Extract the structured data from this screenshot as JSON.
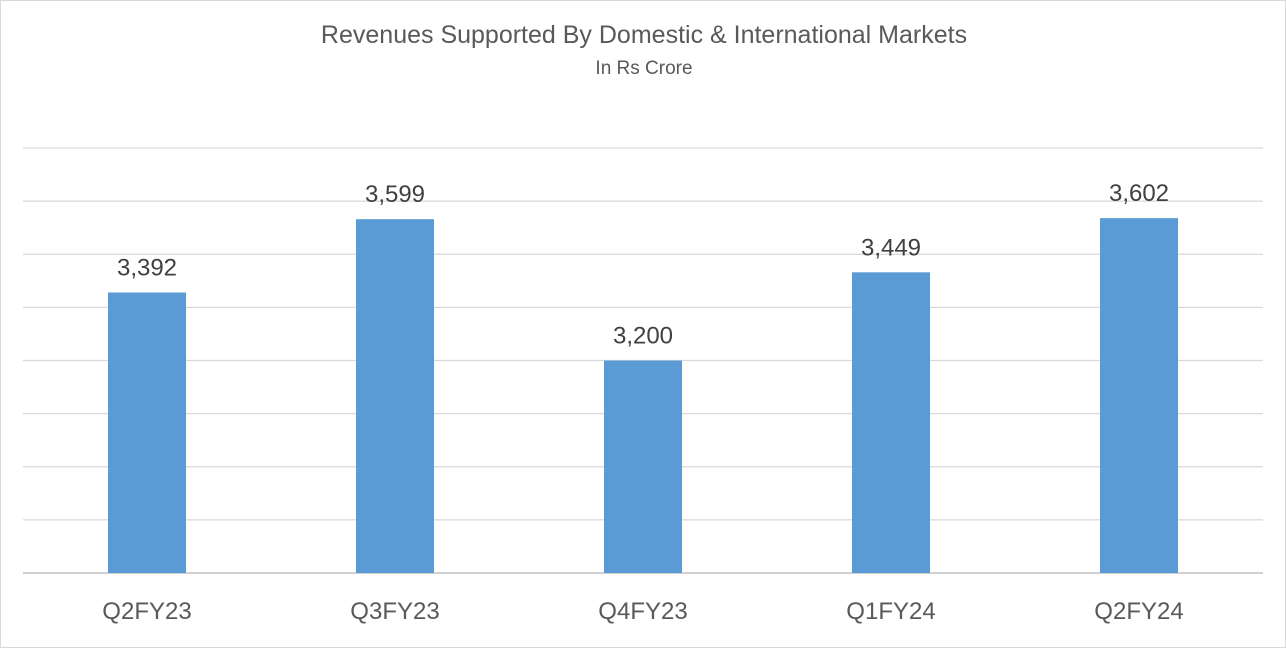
{
  "chart_data": {
    "type": "bar",
    "title": "Revenues Supported By Domestic & International Markets",
    "subtitle": "In Rs Crore",
    "categories": [
      "Q2FY23",
      "Q3FY23",
      "Q4FY23",
      "Q1FY24",
      "Q2FY24"
    ],
    "series": [
      {
        "values": [
          3392,
          3599,
          3200,
          3449,
          3602
        ],
        "labels": [
          "3,392",
          "3,599",
          "3,200",
          "3,449",
          "3,602"
        ],
        "color": "#5b9bd5"
      }
    ],
    "xlabel": "",
    "ylabel": "",
    "ylim": [
      2600,
      3800
    ],
    "y_axis_labels_shown": false,
    "grid": true,
    "legend": "none"
  }
}
